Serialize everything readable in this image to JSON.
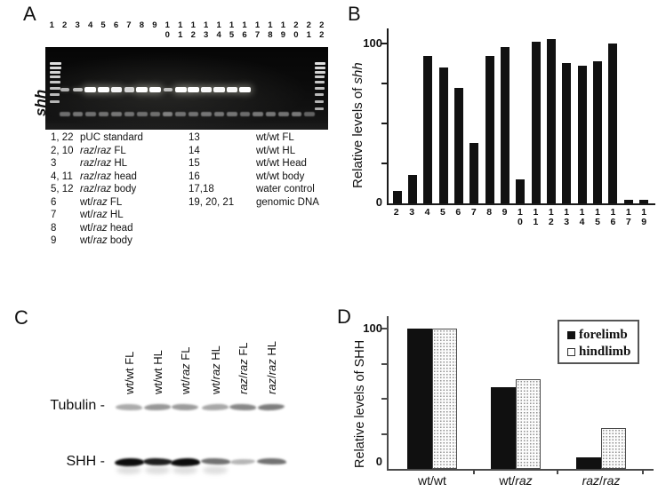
{
  "panels": {
    "A": {
      "letter": "A",
      "lane_numbers": [
        "1",
        "2",
        "3",
        "4",
        "5",
        "6",
        "7",
        "8",
        "9",
        "10",
        "11",
        "12",
        "13",
        "14",
        "15",
        "16",
        "17",
        "18",
        "19",
        "20",
        "21",
        "22"
      ],
      "gel": {
        "side_label": "shh",
        "ladder_lanes": [
          "1",
          "22"
        ],
        "main_bands": [
          {
            "lane": 2,
            "intensity": 0.45
          },
          {
            "lane": 3,
            "intensity": 0.55
          },
          {
            "lane": 4,
            "intensity": 1.0
          },
          {
            "lane": 5,
            "intensity": 1.0
          },
          {
            "lane": 6,
            "intensity": 0.92
          },
          {
            "lane": 7,
            "intensity": 0.7
          },
          {
            "lane": 8,
            "intensity": 1.0
          },
          {
            "lane": 9,
            "intensity": 1.0
          },
          {
            "lane": 10,
            "intensity": 0.5
          },
          {
            "lane": 11,
            "intensity": 1.0
          },
          {
            "lane": 12,
            "intensity": 1.0
          },
          {
            "lane": 13,
            "intensity": 0.95
          },
          {
            "lane": 14,
            "intensity": 0.95
          },
          {
            "lane": 15,
            "intensity": 0.95
          },
          {
            "lane": 16,
            "intensity": 1.0
          }
        ],
        "lower_bands": [
          {
            "lane": 2,
            "intensity": 0.5
          },
          {
            "lane": 3,
            "intensity": 0.55
          },
          {
            "lane": 4,
            "intensity": 0.5
          },
          {
            "lane": 5,
            "intensity": 0.5
          },
          {
            "lane": 6,
            "intensity": 0.55
          },
          {
            "lane": 7,
            "intensity": 0.5
          },
          {
            "lane": 8,
            "intensity": 0.45
          },
          {
            "lane": 9,
            "intensity": 0.45
          },
          {
            "lane": 10,
            "intensity": 0.7
          },
          {
            "lane": 11,
            "intensity": 0.5
          },
          {
            "lane": 12,
            "intensity": 0.5
          },
          {
            "lane": 13,
            "intensity": 0.55
          },
          {
            "lane": 14,
            "intensity": 0.55
          },
          {
            "lane": 15,
            "intensity": 0.55
          },
          {
            "lane": 16,
            "intensity": 0.45
          },
          {
            "lane": 17,
            "intensity": 0.6
          },
          {
            "lane": 18,
            "intensity": 0.6
          },
          {
            "lane": 19,
            "intensity": 0.55
          },
          {
            "lane": 20,
            "intensity": 0.65
          },
          {
            "lane": 21,
            "intensity": 0.35
          }
        ]
      },
      "legend_left": [
        {
          "num": "1, 22",
          "desc": "pUC standard"
        },
        {
          "num": "2, 10",
          "desc": "raz/raz FL"
        },
        {
          "num": "3",
          "desc": "raz/raz HL"
        },
        {
          "num": "4, 11",
          "desc": "raz/raz head"
        },
        {
          "num": "5, 12",
          "desc": "raz/raz body"
        },
        {
          "num": "6",
          "desc": "wt/raz FL"
        },
        {
          "num": "7",
          "desc": "wt/raz HL"
        },
        {
          "num": "8",
          "desc": "wt/raz head"
        },
        {
          "num": "9",
          "desc": "wt/raz body"
        }
      ],
      "legend_right": [
        {
          "num": "13",
          "desc": "wt/wt FL"
        },
        {
          "num": "14",
          "desc": "wt/wt HL"
        },
        {
          "num": "15",
          "desc": "wt/wt Head"
        },
        {
          "num": "16",
          "desc": "wt/wt body"
        },
        {
          "num": "17,18",
          "desc": "water control"
        },
        {
          "num": "19, 20, 21",
          "desc": "genomic DNA"
        }
      ]
    },
    "B": {
      "letter": "B"
    },
    "C": {
      "letter": "C",
      "row_labels": [
        "Tubulin -",
        "SHH -"
      ],
      "col_labels": [
        "wt/wt FL",
        "wt/wt HL",
        "wt/raz FL",
        "wt/raz HL",
        "raz/raz FL",
        "raz/raz HL"
      ],
      "tubulin_band_intensities": [
        0.42,
        0.52,
        0.5,
        0.44,
        0.6,
        0.65
      ],
      "shh_band_intensities": [
        1.0,
        0.92,
        1.0,
        0.58,
        0.3,
        0.58
      ]
    },
    "D": {
      "letter": "D"
    }
  },
  "chart_data": [
    {
      "type": "bar",
      "panel": "B",
      "title": "",
      "categories": [
        "2",
        "3",
        "4",
        "5",
        "6",
        "7",
        "8",
        "9",
        "10",
        "11",
        "12",
        "13",
        "14",
        "15",
        "16",
        "17",
        "19"
      ],
      "values": [
        8,
        18,
        92,
        85,
        72,
        38,
        92,
        98,
        15,
        101,
        103,
        88,
        86,
        89,
        100,
        2,
        2
      ],
      "xlabel": "",
      "ylabel": "Relative levels of shh",
      "ylim": [
        0,
        105
      ],
      "yticks": [
        0,
        100
      ],
      "bar_color": "#111111",
      "grid": false,
      "legend": null
    },
    {
      "type": "bar",
      "panel": "D",
      "title": "",
      "categories": [
        "wt/wt",
        "wt/raz",
        "raz/raz"
      ],
      "series": [
        {
          "name": "forelimb",
          "values": [
            100,
            58,
            8
          ],
          "fill": "#111111"
        },
        {
          "name": "hindlimb",
          "values": [
            100,
            64,
            29
          ],
          "fill": "stipple-dots",
          "dot_color": "#8f8f8f"
        }
      ],
      "xlabel": "",
      "ylabel": "Relative levels of SHH",
      "ylim": [
        0,
        105
      ],
      "yticks": [
        0,
        100
      ],
      "grid": false,
      "legend_position": "top-right"
    }
  ]
}
